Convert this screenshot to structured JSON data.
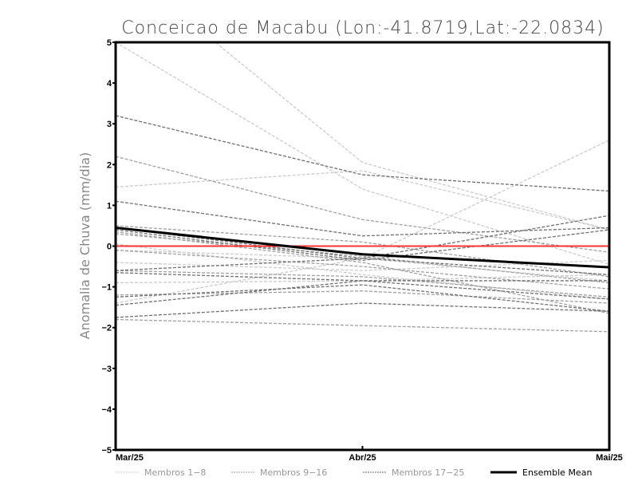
{
  "chart_data": {
    "type": "line",
    "title": "Conceicao de Macabu (Lon:-41.8719,Lat:-22.0834)",
    "ylabel": "Anomalia de Chuva (mm/dia)",
    "xlabel": "",
    "categories": [
      "Mar/25",
      "Abr/25",
      "Mai/25"
    ],
    "ylim": [
      -5,
      5
    ],
    "yticks": [
      "5",
      "4",
      "3",
      "2",
      "1",
      "0",
      "−1",
      "−2",
      "−3",
      "−4",
      "−5"
    ],
    "ytick_values": [
      5,
      4,
      3,
      2,
      1,
      0,
      -1,
      -2,
      -3,
      -4,
      -5
    ],
    "reference_line": {
      "value": 0,
      "color": "#ff3333"
    },
    "groups": [
      {
        "name": "Membros 1-8",
        "color": "#cccccc",
        "dashed": true,
        "series": [
          [
            7.0,
            2.05,
            0.4
          ],
          [
            5.0,
            1.4,
            -0.45
          ],
          [
            1.45,
            1.85,
            0.4
          ],
          [
            -0.1,
            -0.3,
            2.6
          ],
          [
            -0.4,
            -0.6,
            -0.35
          ],
          [
            -0.9,
            -0.85,
            -0.7
          ],
          [
            -1.4,
            -0.3,
            -0.85
          ],
          [
            0.05,
            -0.7,
            -1.3
          ]
        ]
      },
      {
        "name": "Membros 9-16",
        "color": "#a0a0a0",
        "dashed": true,
        "series": [
          [
            2.2,
            0.65,
            -0.15
          ],
          [
            0.5,
            0.1,
            -0.75
          ],
          [
            0.3,
            -0.25,
            -0.9
          ],
          [
            -0.1,
            -0.5,
            -1.05
          ],
          [
            -0.6,
            -0.75,
            -1.25
          ],
          [
            -1.2,
            -1.1,
            -1.4
          ],
          [
            -1.8,
            -1.95,
            -2.1
          ],
          [
            0.35,
            -0.4,
            -1.65
          ]
        ]
      },
      {
        "name": "Membros 17-25",
        "color": "#707070",
        "dashed": true,
        "series": [
          [
            3.2,
            1.75,
            1.35
          ],
          [
            1.1,
            0.25,
            0.45
          ],
          [
            0.45,
            -0.3,
            0.75
          ],
          [
            0.4,
            -0.35,
            0.4
          ],
          [
            -0.6,
            -0.3,
            -0.7
          ],
          [
            -0.65,
            -0.85,
            -0.85
          ],
          [
            -1.25,
            -0.95,
            -1.6
          ],
          [
            -1.45,
            -0.85,
            -1.3
          ],
          [
            -1.75,
            -1.4,
            -1.6
          ]
        ]
      }
    ],
    "ensemble_mean": {
      "name": "Ensemble Mean",
      "color": "#000000",
      "values": [
        0.45,
        -0.2,
        -0.52
      ]
    },
    "legend": {
      "placement": "bottom",
      "entries": [
        "Membros 1−8",
        "Membros 9−16",
        "Membros 17−25",
        "Ensemble Mean"
      ]
    }
  }
}
